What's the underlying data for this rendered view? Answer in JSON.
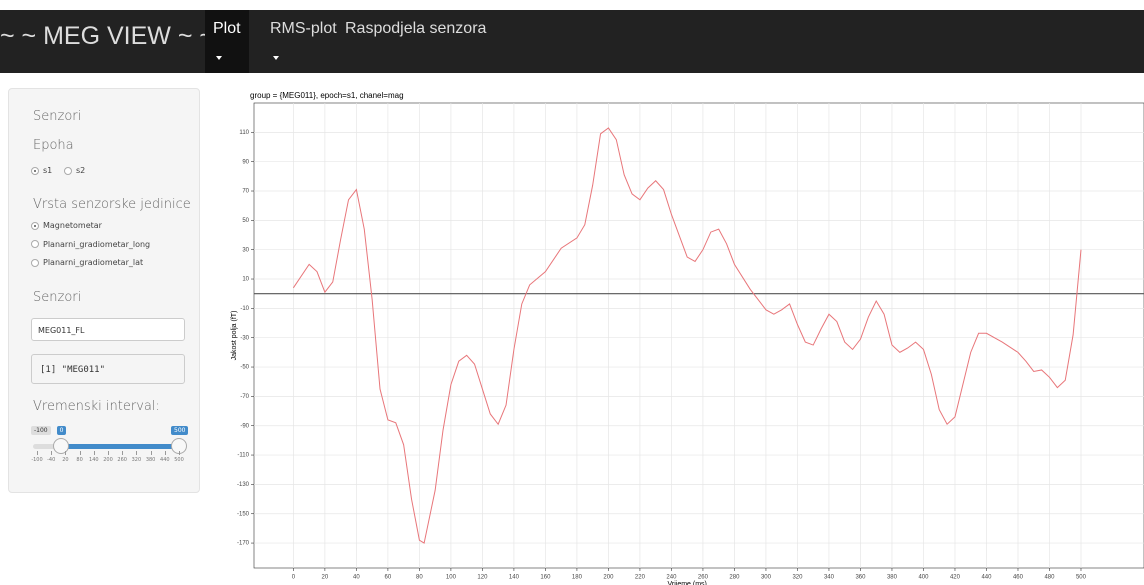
{
  "navbar": {
    "brand": "~ ~ MEG VIEW ~ ~",
    "tabs": [
      "Plot",
      "RMS-plot",
      "Raspodjela senzora"
    ],
    "active": "Plot"
  },
  "sidebar": {
    "section_title": "Senzori",
    "epoch": {
      "label": "Epoha",
      "options": [
        "s1",
        "s2"
      ],
      "selected": "s1"
    },
    "unit": {
      "label": "Vrsta senzorske jedinice",
      "options": [
        "Magnetometar",
        "Planarni_gradiometar_long",
        "Planarni_gradiometar_lat"
      ],
      "selected": "Magnetometar"
    },
    "sensors": {
      "label": "Senzori",
      "input": "MEG011_FL",
      "output": "[1] \"MEG011\""
    },
    "slider": {
      "label": "Vremenski interval:",
      "min": -100,
      "max": 500,
      "from": 0,
      "to": 500,
      "ticks": [
        -100,
        -40,
        20,
        80,
        140,
        200,
        260,
        320,
        380,
        440,
        500
      ]
    }
  },
  "chart_data": {
    "type": "line",
    "title": "group = {MEG011}, epoch=s1, chanel=mag",
    "x_label": "Vrijeme (ms)",
    "y_label": "Jakost polja (fT)",
    "x": [
      0,
      10,
      15,
      20,
      25,
      30,
      35,
      40,
      45,
      50,
      55,
      60,
      65,
      70,
      75,
      80,
      83,
      90,
      95,
      100,
      105,
      110,
      115,
      120,
      125,
      130,
      135,
      140,
      145,
      150,
      160,
      170,
      180,
      185,
      190,
      195,
      200,
      205,
      210,
      215,
      220,
      225,
      230,
      235,
      240,
      250,
      255,
      260,
      265,
      270,
      275,
      280,
      290,
      300,
      305,
      310,
      315,
      320,
      325,
      330,
      335,
      340,
      345,
      350,
      355,
      360,
      365,
      370,
      375,
      380,
      385,
      390,
      395,
      400,
      405,
      410,
      415,
      420,
      425,
      430,
      435,
      440,
      450,
      460,
      465,
      470,
      475,
      480,
      485,
      490,
      495,
      500
    ],
    "series": [
      {
        "name": "MEG011",
        "color": "#e8767a",
        "values": [
          4,
          20,
          15,
          1,
          8,
          37,
          64,
          71,
          44,
          -4,
          -65,
          -86,
          -88,
          -103,
          -140,
          -168,
          -170,
          -134,
          -93,
          -62,
          -46,
          -42,
          -48,
          -65,
          -82,
          -89,
          -76,
          -38,
          -7,
          6,
          15,
          31,
          38,
          47,
          74,
          109,
          113,
          105,
          81,
          68,
          64,
          72,
          77,
          71,
          54,
          25,
          22,
          30,
          42,
          44,
          34,
          20,
          3,
          -11,
          -14,
          -11,
          -7,
          -21,
          -33,
          -35,
          -24,
          -14,
          -19,
          -33,
          -38,
          -31,
          -16,
          -5,
          -14,
          -35,
          -40,
          -37,
          -33,
          -38,
          -55,
          -79,
          -89,
          -84,
          -62,
          -40,
          -27,
          -27,
          -33,
          -40,
          -46,
          -53,
          -52,
          -57,
          -64,
          -59,
          -28,
          30
        ]
      }
    ],
    "hline": 0,
    "xlim": [
      -25,
      540
    ],
    "ylim": [
      -187,
      130
    ],
    "xticks": [
      0,
      20,
      40,
      60,
      80,
      100,
      120,
      140,
      160,
      180,
      200,
      220,
      240,
      260,
      280,
      300,
      320,
      340,
      360,
      380,
      400,
      420,
      440,
      460,
      480,
      500
    ],
    "yticks": [
      110,
      90,
      70,
      50,
      30,
      10,
      -10,
      -30,
      -50,
      -70,
      -90,
      -110,
      -130,
      -150,
      -170
    ],
    "grid": true
  }
}
